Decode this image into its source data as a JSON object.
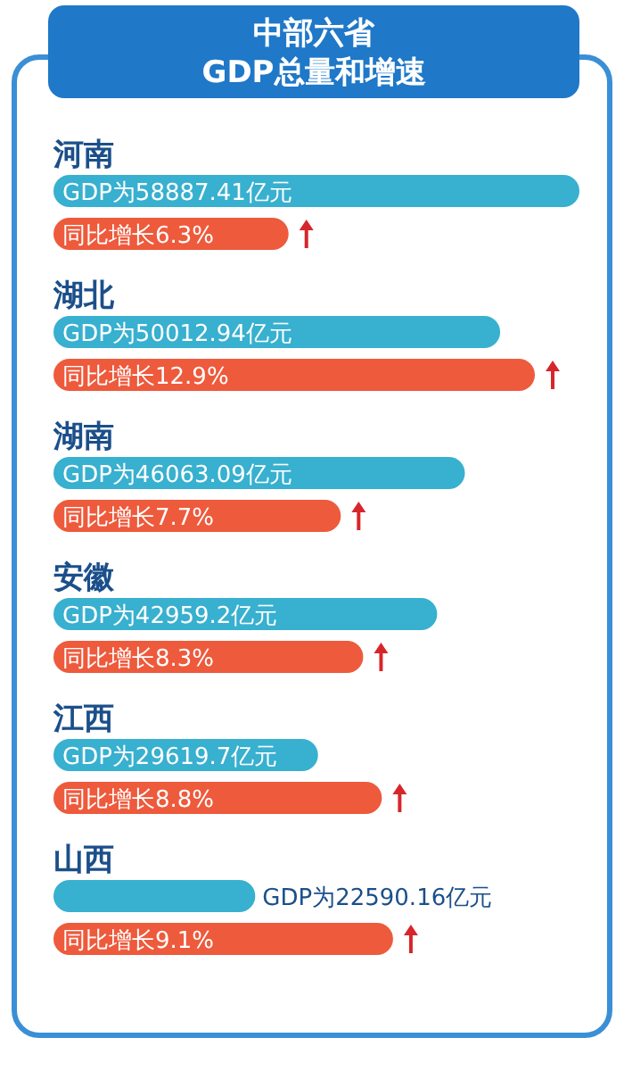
{
  "chart_data": [
    {
      "type": "bar",
      "orientation": "horizontal",
      "title": "中部六省",
      "subtitle": "GDP总量和增速",
      "categories": [
        "河南",
        "湖北",
        "湖南",
        "安徽",
        "江西",
        "山西"
      ],
      "series": [
        {
          "color": "#38b0cf",
          "values": [
            58887.41,
            50012.94,
            46063.09,
            42959.2,
            29619.7,
            22590.16
          ],
          "value_labels": [
            "GDP为58887.41亿元",
            "GDP为50012.94亿元",
            "GDP为46063.09亿元",
            "GDP为42959.2亿元",
            "GDP为29619.7亿元",
            "GDP为22590.16亿元"
          ]
        }
      ]
    },
    {
      "type": "bar",
      "orientation": "horizontal",
      "categories": [
        null,
        null,
        null,
        null,
        null,
        null
      ],
      "series": [
        {
          "color": "#ee5a3c",
          "values": [
            6.3,
            12.9,
            7.7,
            8.3,
            8.8,
            9.1
          ],
          "value_labels": [
            "同比增长6.3%",
            "同比增长12.9%",
            "同比增长7.7%",
            "同比增长8.3%",
            "同比增长8.8%",
            "同比增长9.1%"
          ]
        }
      ]
    }
  ]
}
